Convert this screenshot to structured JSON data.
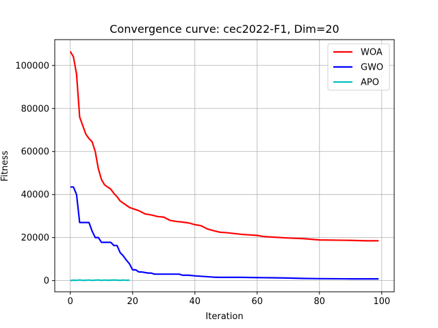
{
  "chart_data": {
    "type": "line",
    "title": "Convergence curve: cec2022-F1, Dim=20",
    "xlabel": "Iteration",
    "ylabel": "Fitness",
    "xlim": [
      -5,
      104
    ],
    "ylim": [
      -5200,
      112000
    ],
    "xticks": [
      0,
      20,
      40,
      60,
      80,
      100
    ],
    "xtick_labels": [
      "0",
      "20",
      "40",
      "60",
      "80",
      "100"
    ],
    "yticks": [
      0,
      20000,
      40000,
      60000,
      80000,
      100000
    ],
    "ytick_labels": [
      "0",
      "20000",
      "40000",
      "60000",
      "80000",
      "100000"
    ],
    "grid": true,
    "legend_position": "top-right",
    "series": [
      {
        "name": "WOA",
        "color": "#ff0000",
        "x": [
          0,
          1,
          2,
          3,
          4,
          5,
          6,
          7,
          8,
          9,
          10,
          11,
          12,
          13,
          14,
          15,
          16,
          17,
          18,
          19,
          20,
          22,
          24,
          26,
          28,
          30,
          32,
          34,
          36,
          38,
          40,
          42,
          44,
          46,
          48,
          50,
          55,
          60,
          62,
          65,
          70,
          75,
          80,
          85,
          90,
          95,
          99
        ],
        "y": [
          106500,
          104000,
          96000,
          76000,
          72000,
          68000,
          66000,
          64500,
          60000,
          52000,
          47000,
          44500,
          43500,
          42500,
          40500,
          39000,
          37000,
          36000,
          35000,
          34000,
          33500,
          32500,
          31000,
          30500,
          29800,
          29500,
          28000,
          27500,
          27200,
          26800,
          26000,
          25500,
          24000,
          23200,
          22500,
          22300,
          21500,
          21000,
          20500,
          20200,
          19800,
          19500,
          18900,
          18800,
          18700,
          18500,
          18500
        ]
      },
      {
        "name": "GWO",
        "color": "#0000ff",
        "x": [
          0,
          1,
          2,
          3,
          4,
          5,
          6,
          7,
          8,
          9,
          10,
          11,
          12,
          13,
          14,
          15,
          16,
          17,
          18,
          19,
          20,
          21,
          22,
          23,
          25,
          26,
          27,
          28,
          30,
          35,
          36,
          38,
          40,
          42,
          44,
          46,
          48,
          50,
          55,
          60,
          65,
          70,
          75,
          80,
          85,
          90,
          95,
          99
        ],
        "y": [
          43500,
          43500,
          40000,
          27000,
          27000,
          27000,
          27000,
          23000,
          20000,
          20000,
          17800,
          17800,
          17800,
          17800,
          16300,
          16300,
          13000,
          11500,
          9500,
          7800,
          5000,
          5000,
          4000,
          4000,
          3500,
          3500,
          3000,
          3000,
          3000,
          3000,
          2500,
          2500,
          2200,
          2000,
          1800,
          1600,
          1500,
          1500,
          1500,
          1400,
          1300,
          1200,
          1000,
          900,
          850,
          800,
          800,
          800
        ]
      },
      {
        "name": "APO",
        "color": "#00bfbf",
        "x": [
          0,
          1,
          2,
          3,
          4,
          5,
          6,
          7,
          8,
          9,
          10,
          11,
          12,
          13,
          14,
          15,
          16,
          17,
          18,
          19
        ],
        "y": [
          0,
          200,
          100,
          300,
          100,
          150,
          250,
          100,
          200,
          300,
          100,
          250,
          150,
          200,
          300,
          200,
          100,
          250,
          150,
          200
        ]
      }
    ]
  }
}
